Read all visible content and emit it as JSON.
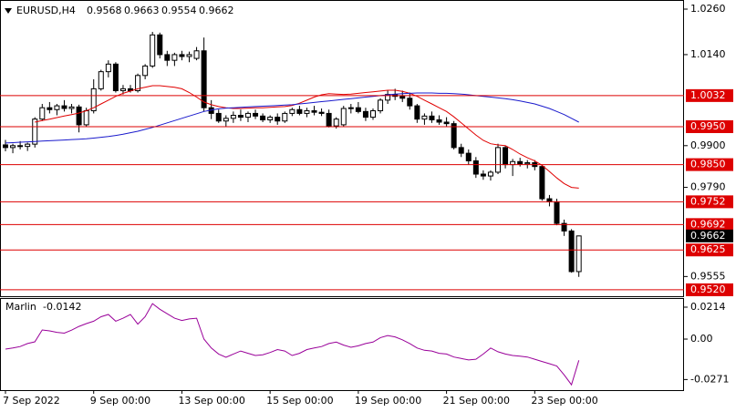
{
  "chart_data": [
    {
      "type": "candlestick",
      "title": "EURUSD,H4",
      "categories": [
        "7 Sep 2022",
        null,
        null,
        null,
        null,
        null,
        null,
        null,
        null,
        null,
        null,
        null,
        "9 Sep 00:00",
        null,
        null,
        null,
        null,
        null,
        null,
        null,
        null,
        null,
        null,
        null,
        "13 Sep 00:00",
        null,
        null,
        null,
        null,
        null,
        null,
        null,
        null,
        null,
        null,
        null,
        "15 Sep 00:00",
        null,
        null,
        null,
        null,
        null,
        null,
        null,
        null,
        null,
        null,
        null,
        "19 Sep 00:00",
        null,
        null,
        null,
        null,
        null,
        null,
        null,
        null,
        null,
        null,
        null,
        "21 Sep 00:00",
        null,
        null,
        null,
        null,
        null,
        null,
        null,
        null,
        null,
        null,
        null,
        "23 Sep 00:00",
        null,
        null,
        null,
        null,
        null,
        null
      ],
      "open": [
        0.9902,
        0.9895,
        0.99,
        0.9898,
        0.9904,
        0.997,
        1.0,
        0.9995,
        1.0005,
        0.9998,
        1.0002,
        0.9955,
        0.9992,
        1.005,
        1.0095,
        1.0115,
        1.0045,
        1.005,
        1.0045,
        1.0085,
        1.011,
        1.0192,
        1.014,
        1.0125,
        1.014,
        1.0135,
        1.013,
        1.015,
        1.0,
        0.9985,
        0.9965,
        0.9972,
        0.998,
        0.9975,
        0.9985,
        0.9978,
        0.9968,
        0.9975,
        0.9965,
        0.9985,
        0.9995,
        0.9985,
        0.9992,
        0.9988,
        0.9985,
        0.9952,
        0.9955,
        0.9998,
        1.0,
        0.999,
        0.9975,
        0.9992,
        1.002,
        1.0035,
        1.003,
        1.0025,
        1.0005,
        0.997,
        0.9978,
        0.9968,
        0.9962,
        0.9958,
        0.9895,
        0.988,
        0.986,
        0.9825,
        0.982,
        0.983,
        0.9895,
        0.985,
        0.9858,
        0.9852,
        0.9855,
        0.9845,
        0.976,
        0.9752,
        0.9695,
        0.9675,
        0.9568
      ],
      "high": [
        0.9915,
        0.9905,
        0.9912,
        0.9908,
        0.9975,
        1.001,
        1.0015,
        1.001,
        1.002,
        1.001,
        1.0008,
        1.0,
        1.0075,
        1.01,
        1.0125,
        1.012,
        1.006,
        1.006,
        1.009,
        1.0115,
        1.02,
        1.0198,
        1.015,
        1.0145,
        1.015,
        1.0148,
        1.016,
        1.0185,
        1.002,
        0.9995,
        0.998,
        0.999,
        0.9995,
        0.999,
        0.9995,
        0.9985,
        0.998,
        0.9985,
        0.999,
        1.0,
        1.0005,
        1.0,
        1.0005,
        0.9998,
        0.9995,
        0.9975,
        1.0005,
        1.001,
        1.0015,
        1.0,
        0.9998,
        1.0025,
        1.0045,
        1.005,
        1.0045,
        1.004,
        1.001,
        0.9985,
        0.999,
        0.998,
        0.9975,
        0.9965,
        0.9905,
        0.989,
        0.987,
        0.9835,
        0.9835,
        0.9905,
        0.99,
        0.9865,
        0.9868,
        0.9862,
        0.9862,
        0.985,
        0.977,
        0.976,
        0.9705,
        0.968,
        0.9663
      ],
      "low": [
        0.9885,
        0.988,
        0.989,
        0.9886,
        0.9895,
        0.9965,
        0.9985,
        0.998,
        0.999,
        0.9985,
        0.9935,
        0.995,
        0.9985,
        1.0045,
        1.008,
        1.004,
        1.0035,
        1.004,
        1.004,
        1.0075,
        1.0105,
        1.013,
        1.011,
        1.011,
        1.0125,
        1.012,
        1.0125,
        0.999,
        0.997,
        0.996,
        0.995,
        0.996,
        0.9965,
        0.9962,
        0.997,
        0.9962,
        0.996,
        0.9955,
        0.996,
        0.9978,
        0.998,
        0.9975,
        0.998,
        0.9978,
        0.9948,
        0.9945,
        0.995,
        0.9985,
        0.9985,
        0.9965,
        0.9968,
        0.9985,
        1.001,
        1.002,
        1.0015,
        0.9995,
        0.996,
        0.9955,
        0.996,
        0.9955,
        0.995,
        0.989,
        0.987,
        0.985,
        0.9815,
        0.981,
        0.9808,
        0.9825,
        0.984,
        0.982,
        0.9845,
        0.984,
        0.9835,
        0.9755,
        0.974,
        0.969,
        0.9662,
        0.9565,
        0.9554
      ],
      "close": [
        0.9895,
        0.99,
        0.9898,
        0.9904,
        0.997,
        1.0,
        0.9995,
        1.0005,
        0.9998,
        1.0002,
        0.9955,
        0.9992,
        1.005,
        1.0095,
        1.0115,
        1.0045,
        1.005,
        1.0045,
        1.0085,
        1.011,
        1.0192,
        1.014,
        1.0125,
        1.014,
        1.0135,
        1.014,
        1.015,
        1.0,
        0.9985,
        0.9965,
        0.9972,
        0.998,
        0.9975,
        0.9985,
        0.9978,
        0.9968,
        0.9975,
        0.9965,
        0.9985,
        0.9995,
        0.9985,
        0.9992,
        0.9988,
        0.9985,
        0.9952,
        0.997,
        0.9998,
        1.0,
        0.999,
        0.9975,
        0.9992,
        1.002,
        1.0035,
        1.003,
        1.0025,
        1.0005,
        0.997,
        0.9978,
        0.9968,
        0.9962,
        0.9958,
        0.9895,
        0.988,
        0.986,
        0.9825,
        0.982,
        0.983,
        0.9895,
        0.985,
        0.9858,
        0.9852,
        0.9855,
        0.9845,
        0.976,
        0.9752,
        0.9695,
        0.9675,
        0.9568,
        0.9662
      ],
      "up_color": "#ffffff",
      "down_color": "#000000",
      "series": [
        {
          "color": "#e00000",
          "values": [
            null,
            null,
            null,
            null,
            0.9962,
            0.9966,
            0.997,
            0.9974,
            0.9978,
            0.9982,
            0.9986,
            0.9992,
            1.0,
            1.001,
            1.002,
            1.003,
            1.0038,
            1.0044,
            1.005,
            1.0054,
            1.0058,
            1.0058,
            1.0056,
            1.0054,
            1.005,
            1.004,
            1.0028,
            1.0015,
            1.0008,
            1.0003,
            1.0,
            0.9998,
            0.9998,
            0.9999,
            1.0,
            1.0,
            1.0001,
            1.0002,
            1.0003,
            1.0006,
            1.0012,
            1.002,
            1.0028,
            1.0034,
            1.0037,
            1.0036,
            1.0035,
            1.0036,
            1.0038,
            1.004,
            1.0042,
            1.0044,
            1.0046,
            1.0046,
            1.0043,
            1.0038,
            1.003,
            1.002,
            1.001,
            1.0,
            0.999,
            0.9976,
            0.996,
            0.9944,
            0.9928,
            0.9914,
            0.9905,
            0.9902,
            0.99,
            0.989,
            0.9878,
            0.9868,
            0.986,
            0.9848,
            0.9832,
            0.9815,
            0.98,
            0.979,
            0.9788
          ]
        },
        {
          "color": "#1a1acc",
          "values": [
            0.9907,
            0.9908,
            0.9909,
            0.991,
            0.9911,
            0.9912,
            0.9913,
            0.9914,
            0.9915,
            0.9916,
            0.9917,
            0.9918,
            0.992,
            0.9922,
            0.9924,
            0.9927,
            0.993,
            0.9934,
            0.9938,
            0.9943,
            0.9948,
            0.9954,
            0.996,
            0.9966,
            0.9972,
            0.9978,
            0.9984,
            0.999,
            0.9994,
            0.9997,
            0.9999,
            1.0,
            1.0001,
            1.0002,
            1.0003,
            1.0004,
            1.0005,
            1.0006,
            1.0007,
            1.0008,
            1.001,
            1.0012,
            1.0014,
            1.0016,
            1.0018,
            1.002,
            1.0022,
            1.0024,
            1.0026,
            1.0028,
            1.003,
            1.0032,
            1.0034,
            1.0036,
            1.0037,
            1.0038,
            1.0039,
            1.0039,
            1.0039,
            1.0038,
            1.0038,
            1.0037,
            1.0036,
            1.0034,
            1.0032,
            1.003,
            1.0028,
            1.0026,
            1.0024,
            1.0021,
            1.0018,
            1.0014,
            1.001,
            1.0004,
            0.9998,
            0.999,
            0.9982,
            0.9972,
            0.9962
          ]
        }
      ],
      "levels": [
        {
          "value": 1.0032,
          "label": "1.0032"
        },
        {
          "value": 0.995,
          "label": "0.9950"
        },
        {
          "value": 0.985,
          "label": "0.9850"
        },
        {
          "value": 0.9752,
          "label": "0.9752"
        },
        {
          "value": 0.9692,
          "label": "0.9692"
        },
        {
          "value": 0.9625,
          "label": "0.9625"
        },
        {
          "value": 0.952,
          "label": "0.9520"
        }
      ],
      "level_color": "#dd0000",
      "ylim": [
        0.9503,
        1.0284
      ],
      "yticks": [
        {
          "value": 1.026,
          "label": "1.0260"
        },
        {
          "value": 1.014,
          "label": "1.0140"
        },
        {
          "value": 0.99,
          "label": "0.9900"
        },
        {
          "value": 0.979,
          "label": "0.9790"
        },
        0.9555
      ]
    },
    {
      "type": "line",
      "title": "Marlin",
      "color": "#990099",
      "values": [
        -0.0067,
        -0.006,
        -0.005,
        -0.003,
        -0.0018,
        0.0061,
        0.0055,
        0.0045,
        0.004,
        0.006,
        0.0085,
        0.0104,
        0.012,
        0.015,
        0.0165,
        0.012,
        0.014,
        0.0165,
        0.01,
        0.015,
        0.0238,
        0.02,
        0.017,
        0.014,
        0.0125,
        0.0135,
        0.014,
        0.0,
        -0.006,
        -0.01,
        -0.0122,
        -0.01,
        -0.008,
        -0.0095,
        -0.011,
        -0.0105,
        -0.009,
        -0.007,
        -0.008,
        -0.011,
        -0.0095,
        -0.007,
        -0.006,
        -0.005,
        -0.003,
        -0.002,
        -0.004,
        -0.0055,
        -0.0045,
        -0.003,
        -0.002,
        0.001,
        0.0024,
        0.0015,
        -0.0005,
        -0.003,
        -0.006,
        -0.0075,
        -0.008,
        -0.0095,
        -0.01,
        -0.012,
        -0.013,
        -0.014,
        -0.0135,
        -0.01,
        -0.006,
        -0.0085,
        -0.01,
        -0.011,
        -0.0115,
        -0.012,
        -0.0135,
        -0.015,
        -0.0165,
        -0.018,
        -0.024,
        -0.0306,
        -0.0142
      ],
      "ylim": [
        -0.0342,
        0.0275
      ],
      "yticks": [
        0.0214,
        {
          "value": 0,
          "label": "0.00"
        },
        -0.0271
      ]
    }
  ]
}
